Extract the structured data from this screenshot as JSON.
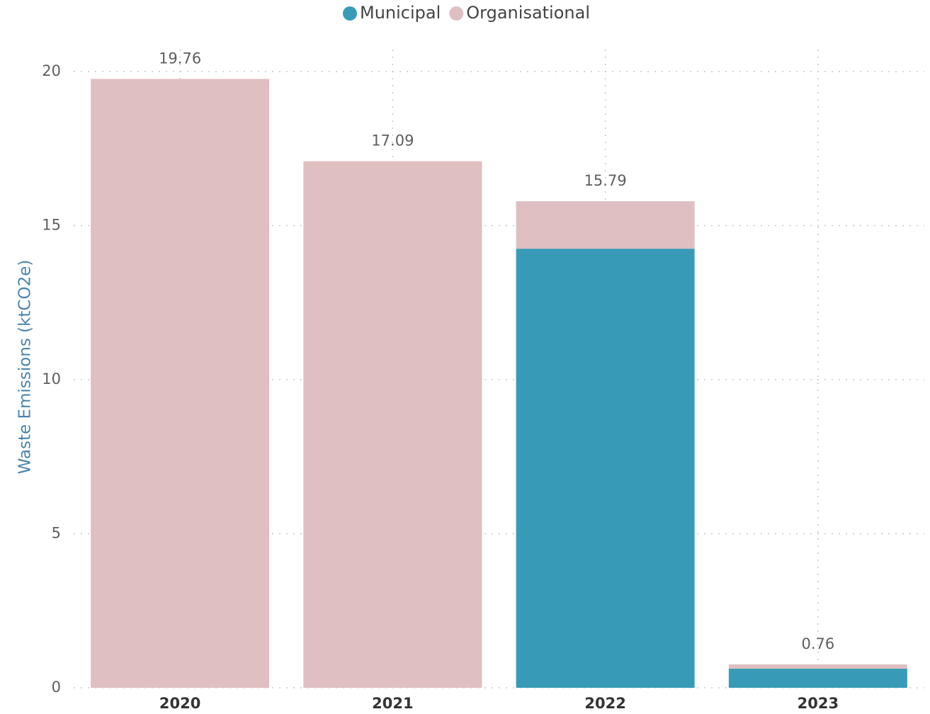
{
  "chart_data": {
    "type": "stacked_bar",
    "ylabel": "Waste Emissions (ktCO2e)",
    "categories": [
      "2020",
      "2021",
      "2022",
      "2023"
    ],
    "series": [
      {
        "name": "Municipal",
        "color": "#379bb8",
        "values": [
          0,
          0,
          14.25,
          0.62
        ]
      },
      {
        "name": "Organisational",
        "color": "#dfbfc1",
        "values": [
          19.76,
          17.09,
          1.54,
          0.14
        ]
      }
    ],
    "totals": [
      19.76,
      17.09,
      15.79,
      0.76
    ],
    "ylim": [
      0,
      20
    ],
    "yticks": [
      0,
      5,
      10,
      15,
      20
    ],
    "grid": true,
    "legend": "top"
  }
}
